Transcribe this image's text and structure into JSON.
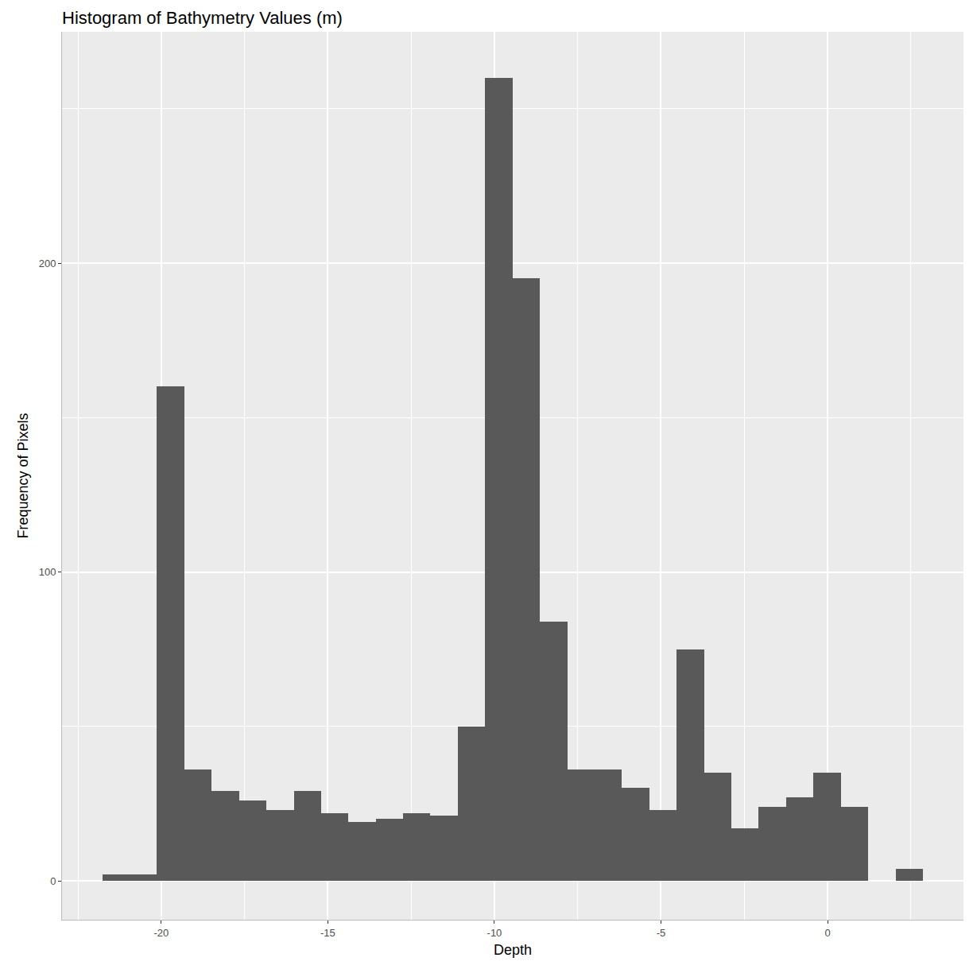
{
  "chart_data": {
    "type": "histogram",
    "title": "Histogram of Bathymetry Values (m)",
    "x_label": "Depth",
    "y_label": "Frequency of Pixels",
    "bins": [
      -21.77,
      -20.95,
      -20.13,
      -19.31,
      -18.49,
      -17.67,
      -16.84,
      -16.02,
      -15.2,
      -14.38,
      -13.56,
      -12.74,
      -11.92,
      -11.1,
      -10.28,
      -9.46,
      -8.63,
      -7.81,
      -6.99,
      -6.17,
      -5.35,
      -4.53,
      -3.71,
      -2.89,
      -2.07,
      -1.25,
      -0.42,
      0.4,
      1.22,
      2.04,
      2.86
    ],
    "values": [
      2,
      2,
      160,
      36,
      29,
      26,
      23,
      29,
      22,
      19,
      20,
      22,
      21,
      50,
      260,
      195,
      84,
      36,
      36,
      30,
      23,
      75,
      35,
      17,
      24,
      27,
      35,
      24,
      0,
      4
    ],
    "color": "#595959",
    "xlim": [
      -22.98,
      4.08
    ],
    "xticks": [
      -20,
      -15,
      -10,
      -5,
      0
    ],
    "ylim": [
      -12.6,
      274.9
    ],
    "yticks": [
      0,
      100,
      200
    ],
    "grid": true
  }
}
